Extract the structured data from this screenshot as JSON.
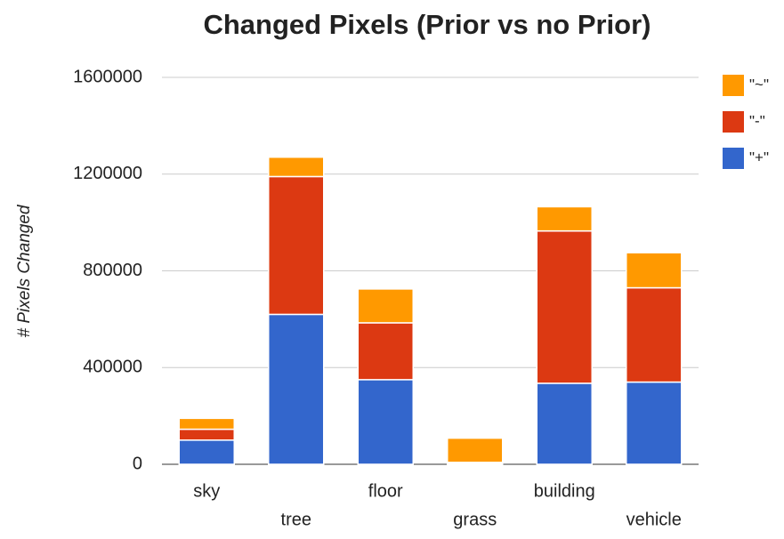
{
  "chart_data": {
    "type": "stacked-bar",
    "title": "Changed Pixels (Prior vs no Prior)",
    "y_label": "# Pixels Changed",
    "categories": [
      "sky",
      "tree",
      "floor",
      "grass",
      "building",
      "vehicle"
    ],
    "series": [
      {
        "name": "\"+\"",
        "color": "#3366cc",
        "values": [
          100000,
          620000,
          350000,
          5000,
          335000,
          340000
        ]
      },
      {
        "name": "\"-\"",
        "color": "#dc3912",
        "values": [
          45000,
          570000,
          235000,
          3000,
          630000,
          390000
        ]
      },
      {
        "name": "\"~\"",
        "color": "#ff9900",
        "values": [
          45000,
          80000,
          140000,
          100000,
          100000,
          145000
        ]
      }
    ],
    "ylim": [
      0,
      1600000
    ],
    "yticks": [
      0,
      400000,
      800000,
      1200000,
      1600000
    ],
    "grid": true,
    "legend": "right"
  }
}
